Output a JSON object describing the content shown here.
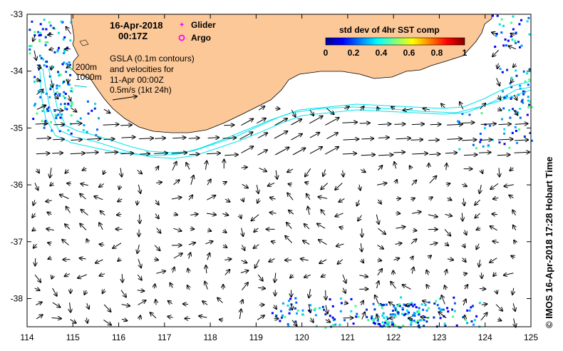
{
  "map": {
    "date_label": "16-Apr-2018",
    "time_label": "00:17Z",
    "legend": {
      "glider_label": "Glider",
      "argo_label": "Argo",
      "glider_color": "#ff00ff",
      "argo_color": "#ff00ff"
    },
    "gsla_note": {
      "line1": "GSLA (0.1m contours)",
      "line2": "and velocities for",
      "line3": "11-Apr 00:00Z",
      "line4": "0.5m/s (1kt 24h)"
    },
    "depth_labels": {
      "shallow": "200m",
      "deep": "1000m",
      "contour_color": "#00e5ee"
    },
    "colorbar": {
      "title": "std dev of 4hr SST comp",
      "ticks": [
        "0",
        "0.2",
        "0.4",
        "0.6",
        "0.8",
        "1"
      ],
      "colors": [
        "#00008f",
        "#0000ff",
        "#0080ff",
        "#00ffff",
        "#80ff80",
        "#ffff00",
        "#ff8000",
        "#ff0000",
        "#800000"
      ]
    },
    "land_color": "#fcc898",
    "longitude_ticks": [
      "114",
      "115",
      "116",
      "117",
      "118",
      "119",
      "120",
      "121",
      "122",
      "123",
      "124",
      "125"
    ],
    "latitude_ticks": [
      "-33",
      "-34",
      "-35",
      "-36",
      "-37",
      "-38"
    ],
    "credit": "© IMOS 16-Apr-2018 17:28 Hobart Time"
  }
}
